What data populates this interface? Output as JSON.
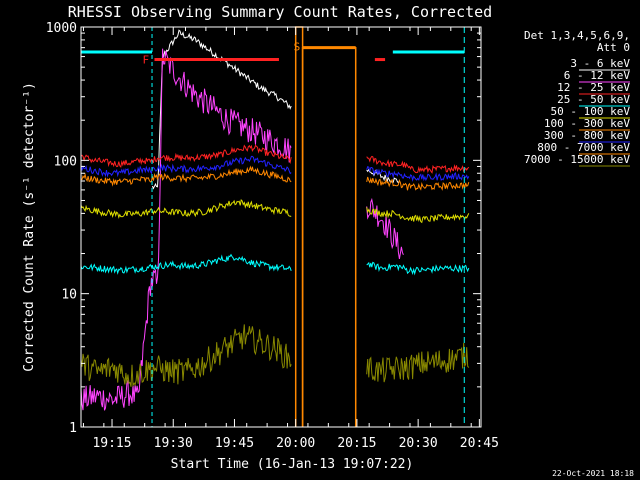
{
  "chart_data": {
    "type": "line",
    "title": "RHESSI Observing Summary Count Rates, Corrected",
    "xlabel": "Start Time (16-Jan-13 19:07:22)",
    "ylabel": "Corrected Count Rate (s⁻¹ detector⁻¹)",
    "yscale": "log",
    "ylim": [
      1,
      1000
    ],
    "xlim_minutes": [
      0,
      98
    ],
    "x_ticks": [
      {
        "label": "19:15",
        "minutes": 7.6
      },
      {
        "label": "19:30",
        "minutes": 22.6
      },
      {
        "label": "19:45",
        "minutes": 37.6
      },
      {
        "label": "20:00",
        "minutes": 52.6
      },
      {
        "label": "20:15",
        "minutes": 67.6
      },
      {
        "label": "20:30",
        "minutes": 82.6
      },
      {
        "label": "20:45",
        "minutes": 97.6
      }
    ],
    "y_ticks": [
      {
        "label": "1",
        "value": 1
      },
      {
        "label": "10",
        "value": 10
      },
      {
        "label": "100",
        "value": 100
      },
      {
        "label": "1000",
        "value": 1000
      }
    ],
    "legend_header": [
      "Det 1,3,4,5,6,9,",
      "Att 0"
    ],
    "series": [
      {
        "name": "3 - 6 keV",
        "color": "#ffffff",
        "segments": [
          {
            "x": [
              17.5,
              18,
              18.8,
              20,
              24,
              28,
              32,
              36,
              40,
              44,
              48,
              50,
              51.5
            ],
            "y": [
              63,
              63,
              62,
              600,
              900,
              800,
              650,
              530,
              430,
              350,
              300,
              270,
              250
            ]
          },
          {
            "x": [
              70,
              72,
              74,
              76,
              78
            ],
            "y": [
              85,
              80,
              75,
              72,
              70
            ]
          }
        ]
      },
      {
        "name": "6 - 12 keV",
        "color": "#ff44ff",
        "segments": [
          {
            "x": [
              0,
              4,
              8,
              12,
              14,
              17,
              18,
              18.8,
              20,
              24,
              28,
              32,
              36,
              40,
              44,
              48,
              50,
              51.5
            ],
            "y": [
              1.6,
              1.7,
              1.6,
              1.8,
              1.6,
              12,
              13,
              11,
              600,
              420,
              310,
              250,
              200,
              175,
              155,
              135,
              125,
              115
            ]
          },
          {
            "x": [
              70,
              72,
              74,
              76,
              78,
              79
            ],
            "y": [
              47,
              42,
              36,
              28,
              22,
              20
            ]
          }
        ]
      },
      {
        "name": "12 - 25 keV",
        "color": "#ff2222",
        "segments": [
          {
            "x": [
              0,
              3,
              6,
              9,
              12,
              15,
              17,
              18.8,
              22,
              26,
              30,
              34,
              38,
              42,
              45,
              48,
              50,
              51.5
            ],
            "y": [
              108,
              100,
              97,
              94,
              96,
              100,
              98,
              105,
              105,
              104,
              106,
              110,
              120,
              125,
              115,
              108,
              104,
              100
            ]
          },
          {
            "x": [
              70,
              72,
              74,
              75.5,
              77,
              79,
              81,
              84,
              88,
              92,
              95
            ],
            "y": [
              105,
              100,
              96,
              94,
              93,
              93,
              85,
              85,
              86,
              88,
              87
            ]
          }
        ]
      },
      {
        "name": "25 - 50 keV",
        "color": "#00ffff",
        "segments": [
          {
            "x": [
              0,
              5,
              10,
              15,
              18,
              22,
              26,
              30,
              34,
              38,
              42,
              46,
              50,
              51.5
            ],
            "y": [
              16,
              15.5,
              15,
              15.5,
              16,
              16.5,
              16,
              16.5,
              18,
              19,
              17,
              16,
              15.5,
              15
            ]
          },
          {
            "x": [
              70,
              72,
              74,
              76,
              78,
              80,
              84,
              88,
              92,
              95
            ],
            "y": [
              17,
              16,
              15.5,
              16,
              16,
              15,
              15,
              15.5,
              15.5,
              15.5
            ]
          }
        ]
      },
      {
        "name": "50 - 100 keV",
        "color": "#dddd00",
        "segments": [
          {
            "x": [
              0,
              5,
              10,
              15,
              18,
              22,
              26,
              30,
              34,
              38,
              42,
              46,
              50,
              51.5
            ],
            "y": [
              44,
              41,
              39,
              40,
              42,
              41,
              40,
              41,
              45,
              49,
              46,
              43,
              41,
              40
            ]
          },
          {
            "x": [
              70,
              72,
              74,
              76,
              78,
              80,
              84,
              88,
              92,
              95
            ],
            "y": [
              43,
              41,
              40,
              40,
              39,
              37,
              36,
              37,
              38,
              38
            ]
          }
        ]
      },
      {
        "name": "100 - 300 keV",
        "color": "#ff8800",
        "segments": [
          {
            "x": [
              0,
              3,
              6,
              9,
              12,
              15,
              17,
              18.8,
              22,
              26,
              30,
              34,
              38,
              42,
              45,
              48,
              50,
              51.5
            ],
            "y": [
              75,
              72,
              70,
              69,
              70,
              72,
              71,
              76,
              74,
              73,
              74,
              77,
              82,
              85,
              80,
              76,
              73,
              70
            ]
          },
          {
            "x": [
              70,
              72,
              74,
              76,
              78,
              80,
              84,
              88,
              92,
              95
            ],
            "y": [
              72,
              70,
              68,
              68,
              67,
              63,
              63,
              64,
              65,
              65
            ]
          }
        ]
      },
      {
        "name": "300 - 800 keV",
        "color": "#2222ff",
        "segments": [
          {
            "x": [
              0,
              3,
              6,
              9,
              12,
              15,
              17,
              18.8,
              22,
              26,
              30,
              34,
              38,
              42,
              45,
              48,
              50,
              51.5
            ],
            "y": [
              88,
              84,
              81,
              80,
              82,
              85,
              84,
              88,
              87,
              86,
              87,
              91,
              98,
              102,
              96,
              89,
              86,
              83
            ]
          },
          {
            "x": [
              70,
              72,
              74,
              76,
              78,
              80,
              84,
              88,
              92,
              95
            ],
            "y": [
              86,
              83,
              80,
              80,
              79,
              75,
              74,
              75,
              76,
              76
            ]
          }
        ]
      },
      {
        "name": "800 - 7000 keV",
        "color": "#ff8800",
        "segments": [
          {
            "x": [
              52.6,
              52.6,
              54.3,
              54.3
            ],
            "y": [
              1,
              1000,
              1000,
              1
            ]
          },
          {
            "x": [
              54.3,
              54.3,
              67.3,
              67.3
            ],
            "y": [
              1,
              700,
              700,
              1
            ]
          }
        ]
      },
      {
        "name": "7000 - 15000 keV",
        "color": "#888800",
        "segments": [
          {
            "x": [
              0,
              4,
              8,
              12,
              15,
              18,
              22,
              26,
              30,
              33,
              36,
              40,
              44,
              48,
              50,
              51.5
            ],
            "y": [
              3.0,
              2.6,
              2.8,
              2.4,
              2.6,
              2.8,
              2.6,
              2.6,
              3.0,
              3.5,
              4.0,
              4.8,
              4.3,
              3.8,
              3.4,
              3.2
            ]
          },
          {
            "x": [
              70,
              73,
              76,
              80,
              84,
              88,
              92,
              95
            ],
            "y": [
              2.8,
              2.6,
              2.7,
              2.8,
              3.0,
              3.1,
              3.3,
              3.5
            ]
          }
        ]
      }
    ],
    "flare_markers": [
      {
        "label": "F",
        "color": "#ff2222",
        "x_start_minutes": 18,
        "x_end_minutes": 48.5,
        "y": 570
      },
      {
        "label": "",
        "color": "#ff2222",
        "x_start_minutes": 72,
        "x_end_minutes": 74.5,
        "y": 570
      }
    ],
    "saa_markers": [
      {
        "label": "S",
        "color": "#ff8800",
        "x_start_minutes": 54.3,
        "x_end_minutes": 67.3,
        "y": 700
      }
    ],
    "night_markers": [
      {
        "color": "#00ffff",
        "x_start_minutes": 0,
        "x_end_minutes": 17.4,
        "y": 650,
        "edge_minutes": 17.4
      },
      {
        "color": "#00ffff",
        "x_start_minutes": 76.4,
        "x_end_minutes": 93.9,
        "y": 650,
        "edge_minutes": 93.9
      }
    ]
  },
  "footer": {
    "date": "22-Oct-2021 18:18"
  }
}
